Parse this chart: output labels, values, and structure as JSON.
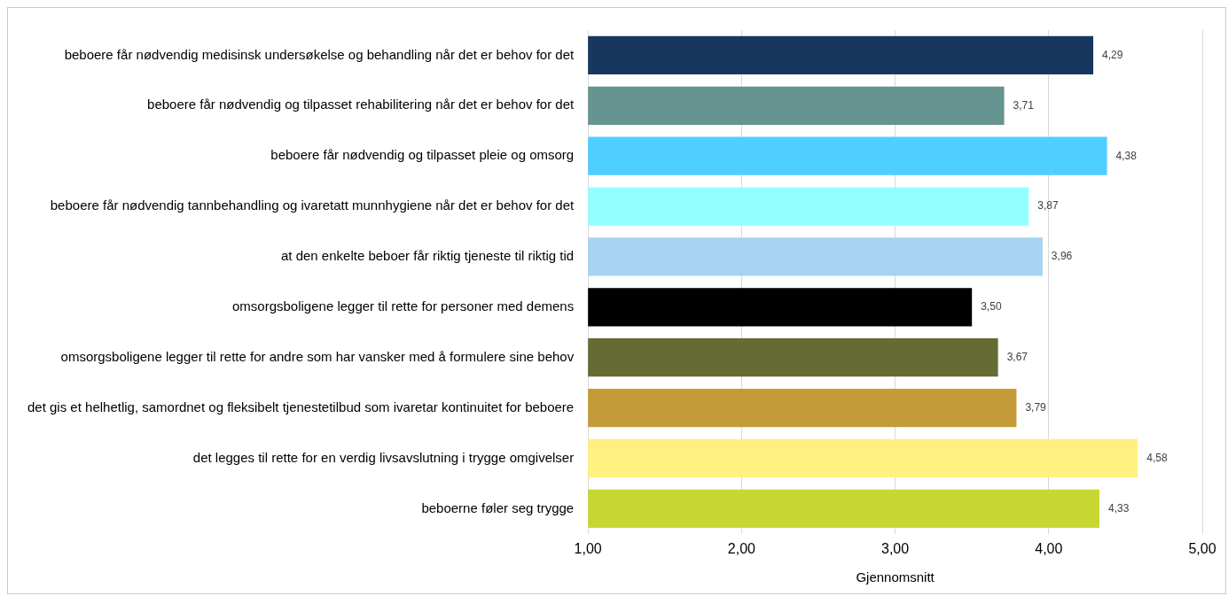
{
  "chart_data": {
    "type": "bar",
    "orientation": "horizontal",
    "xlabel": "Gjennomsnitt",
    "categories": [
      "beboere får nødvendig medisinsk undersøkelse og behandling når det er behov for det",
      "beboere får nødvendig og tilpasset rehabilitering når det er behov for det",
      "beboere får nødvendig og tilpasset pleie og omsorg",
      "beboere får nødvendig tannbehandling og ivaretatt munnhygiene når det er behov for det",
      "at den enkelte beboer får riktig tjeneste til riktig tid",
      "omsorgsboligene legger til rette for personer med demens",
      "omsorgsboligene legger til rette for andre som har vansker med å formulere sine behov",
      "det gis et helhetlig, samordnet og fleksibelt tjenestetilbud som ivaretar kontinuitet for beboere",
      "det legges til rette for en verdig livsavslutning i trygge omgivelser",
      "beboerne føler seg trygge"
    ],
    "values": [
      4.29,
      3.71,
      4.38,
      3.87,
      3.96,
      3.5,
      3.67,
      3.79,
      4.58,
      4.33
    ],
    "value_labels": [
      "4,29",
      "3,71",
      "4,38",
      "3,87",
      "3,96",
      "3,50",
      "3,67",
      "3,79",
      "4,58",
      "4,33"
    ],
    "colors": [
      "#17375e",
      "#669490",
      "#4fcfff",
      "#93ffff",
      "#a6d4f0",
      "#000000",
      "#666b33",
      "#c59b37",
      "#fff080",
      "#c8d634"
    ],
    "xlim": [
      1,
      5
    ],
    "xticks": [
      {
        "value": 1,
        "label": "1,00"
      },
      {
        "value": 2,
        "label": "2,00"
      },
      {
        "value": 3,
        "label": "3,00"
      },
      {
        "value": 4,
        "label": "4,00"
      },
      {
        "value": 5,
        "label": "5,00"
      }
    ],
    "grid": "x",
    "legend": false
  }
}
